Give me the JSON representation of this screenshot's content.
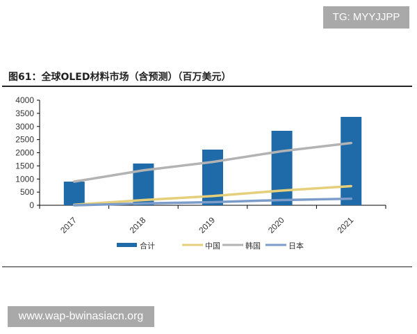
{
  "watermark_top": "TG: MYYJJPP",
  "watermark_bottom": "www.wap-bwinasiacn.org",
  "chart_data": {
    "type": "bar+line",
    "title": "图61：全球OLED材料市场（含预测）（百万美元）",
    "categories": [
      "2017",
      "2018",
      "2019",
      "2020",
      "2021"
    ],
    "ylim": [
      0,
      4000
    ],
    "yticks": [
      0,
      500,
      1000,
      1500,
      2000,
      2500,
      3000,
      3500,
      4000
    ],
    "grid": false,
    "legend": "bottom",
    "series": [
      {
        "name": "合计",
        "type": "bar",
        "color": "#1f6aa8",
        "values": [
          900,
          1590,
          2120,
          2835,
          3365
        ]
      },
      {
        "name": "中国",
        "type": "line",
        "color": "#e6cf7a",
        "values": [
          20,
          200,
          350,
          560,
          730
        ]
      },
      {
        "name": "韩国",
        "type": "line",
        "color": "#b3b3b3",
        "values": [
          900,
          1330,
          1650,
          2060,
          2370
        ]
      },
      {
        "name": "日本",
        "type": "line",
        "color": "#7b9cc9",
        "values": [
          0,
          70,
          120,
          200,
          250
        ]
      }
    ]
  }
}
